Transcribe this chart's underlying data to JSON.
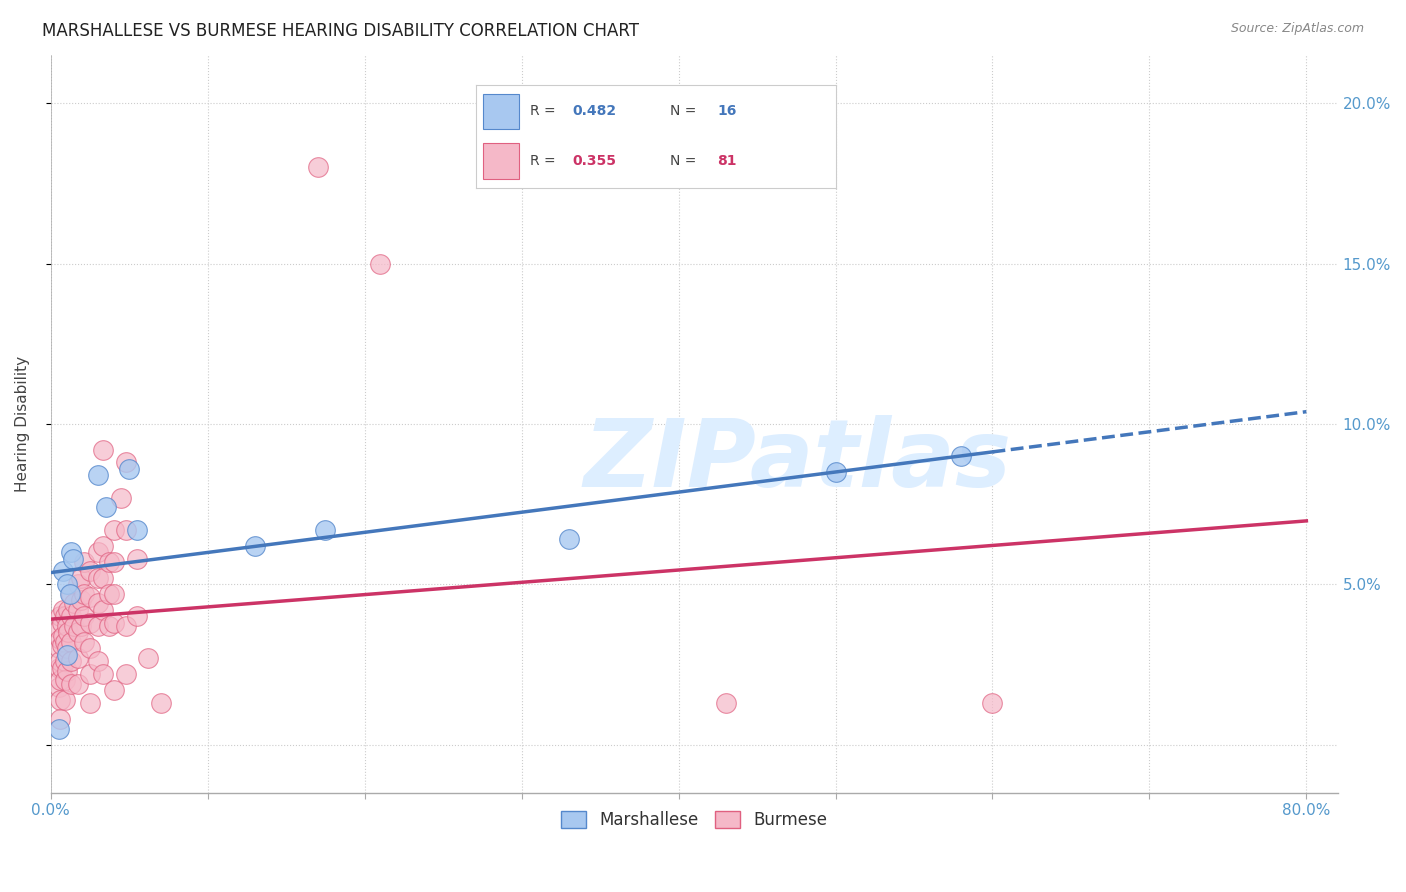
{
  "title": "MARSHALLESE VS BURMESE HEARING DISABILITY CORRELATION CHART",
  "source": "Source: ZipAtlas.com",
  "ylabel": "Hearing Disability",
  "xlim": [
    0.0,
    0.82
  ],
  "ylim": [
    -0.015,
    0.215
  ],
  "yticks": [
    0.0,
    0.05,
    0.1,
    0.15,
    0.2
  ],
  "ytick_labels_right": [
    "",
    "5.0%",
    "10.0%",
    "15.0%",
    "20.0%"
  ],
  "marshallese_R": 0.482,
  "marshallese_N": 16,
  "burmese_R": 0.355,
  "burmese_N": 81,
  "marshallese_color": "#a8c8f0",
  "burmese_color": "#f5b8c8",
  "marshallese_edge_color": "#5588cc",
  "burmese_edge_color": "#e06080",
  "marshallese_line_color": "#4477bb",
  "burmese_line_color": "#cc3366",
  "background_color": "#ffffff",
  "grid_color": "#cccccc",
  "watermark_text": "ZIPatlas",
  "watermark_color": "#ddeeff",
  "title_fontsize": 12,
  "tick_fontsize": 11,
  "marshallese_points": [
    [
      0.008,
      0.054
    ],
    [
      0.01,
      0.05
    ],
    [
      0.012,
      0.047
    ],
    [
      0.013,
      0.06
    ],
    [
      0.014,
      0.058
    ],
    [
      0.03,
      0.084
    ],
    [
      0.035,
      0.074
    ],
    [
      0.05,
      0.086
    ],
    [
      0.055,
      0.067
    ],
    [
      0.13,
      0.062
    ],
    [
      0.175,
      0.067
    ],
    [
      0.33,
      0.064
    ],
    [
      0.5,
      0.085
    ],
    [
      0.58,
      0.09
    ],
    [
      0.005,
      0.005
    ],
    [
      0.01,
      0.028
    ]
  ],
  "burmese_points": [
    [
      0.005,
      0.036
    ],
    [
      0.005,
      0.03
    ],
    [
      0.005,
      0.024
    ],
    [
      0.005,
      0.018
    ],
    [
      0.006,
      0.04
    ],
    [
      0.006,
      0.033
    ],
    [
      0.006,
      0.026
    ],
    [
      0.006,
      0.02
    ],
    [
      0.006,
      0.014
    ],
    [
      0.006,
      0.008
    ],
    [
      0.007,
      0.038
    ],
    [
      0.007,
      0.031
    ],
    [
      0.007,
      0.024
    ],
    [
      0.008,
      0.042
    ],
    [
      0.008,
      0.034
    ],
    [
      0.009,
      0.04
    ],
    [
      0.009,
      0.032
    ],
    [
      0.009,
      0.026
    ],
    [
      0.009,
      0.02
    ],
    [
      0.009,
      0.014
    ],
    [
      0.01,
      0.037
    ],
    [
      0.01,
      0.03
    ],
    [
      0.01,
      0.023
    ],
    [
      0.011,
      0.042
    ],
    [
      0.011,
      0.035
    ],
    [
      0.013,
      0.047
    ],
    [
      0.013,
      0.04
    ],
    [
      0.013,
      0.032
    ],
    [
      0.013,
      0.026
    ],
    [
      0.013,
      0.019
    ],
    [
      0.015,
      0.044
    ],
    [
      0.015,
      0.037
    ],
    [
      0.017,
      0.05
    ],
    [
      0.017,
      0.042
    ],
    [
      0.017,
      0.035
    ],
    [
      0.017,
      0.027
    ],
    [
      0.017,
      0.019
    ],
    [
      0.019,
      0.052
    ],
    [
      0.019,
      0.045
    ],
    [
      0.019,
      0.037
    ],
    [
      0.021,
      0.057
    ],
    [
      0.021,
      0.047
    ],
    [
      0.021,
      0.04
    ],
    [
      0.021,
      0.032
    ],
    [
      0.025,
      0.054
    ],
    [
      0.025,
      0.046
    ],
    [
      0.025,
      0.038
    ],
    [
      0.025,
      0.03
    ],
    [
      0.025,
      0.022
    ],
    [
      0.025,
      0.013
    ],
    [
      0.03,
      0.06
    ],
    [
      0.03,
      0.052
    ],
    [
      0.03,
      0.044
    ],
    [
      0.03,
      0.037
    ],
    [
      0.03,
      0.026
    ],
    [
      0.033,
      0.092
    ],
    [
      0.033,
      0.062
    ],
    [
      0.033,
      0.052
    ],
    [
      0.033,
      0.042
    ],
    [
      0.033,
      0.022
    ],
    [
      0.037,
      0.057
    ],
    [
      0.037,
      0.047
    ],
    [
      0.037,
      0.037
    ],
    [
      0.04,
      0.067
    ],
    [
      0.04,
      0.057
    ],
    [
      0.04,
      0.047
    ],
    [
      0.04,
      0.038
    ],
    [
      0.04,
      0.017
    ],
    [
      0.045,
      0.077
    ],
    [
      0.048,
      0.088
    ],
    [
      0.048,
      0.067
    ],
    [
      0.048,
      0.037
    ],
    [
      0.048,
      0.022
    ],
    [
      0.055,
      0.058
    ],
    [
      0.055,
      0.04
    ],
    [
      0.062,
      0.027
    ],
    [
      0.07,
      0.013
    ],
    [
      0.17,
      0.18
    ],
    [
      0.21,
      0.15
    ],
    [
      0.43,
      0.013
    ],
    [
      0.6,
      0.013
    ]
  ]
}
